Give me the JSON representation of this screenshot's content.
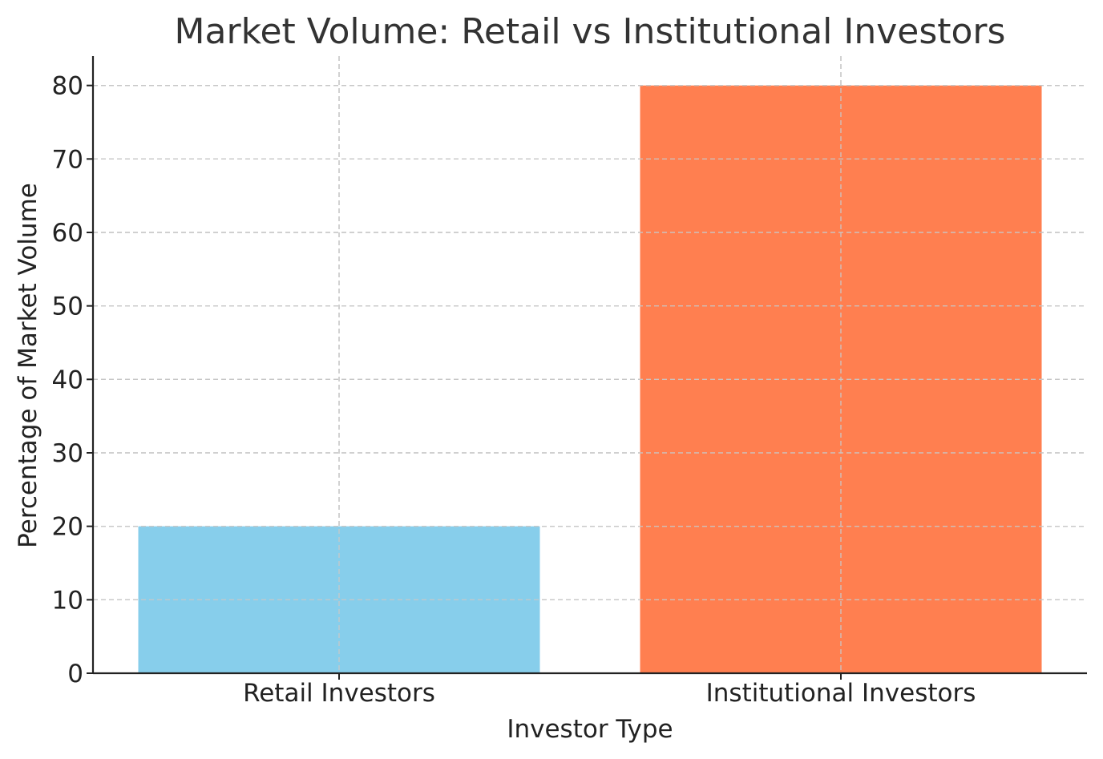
{
  "chart_data": {
    "type": "bar",
    "title": "Market Volume: Retail vs Institutional Investors",
    "xlabel": "Investor Type",
    "ylabel": "Percentage of Market Volume",
    "categories": [
      "Retail Investors",
      "Institutional Investors"
    ],
    "values": [
      20,
      80
    ],
    "colors": [
      "#87ceeb",
      "#ff7f50"
    ],
    "ylim": [
      0,
      84
    ],
    "yticks": [
      0,
      10,
      20,
      30,
      40,
      50,
      60,
      70,
      80
    ],
    "grid": true
  }
}
